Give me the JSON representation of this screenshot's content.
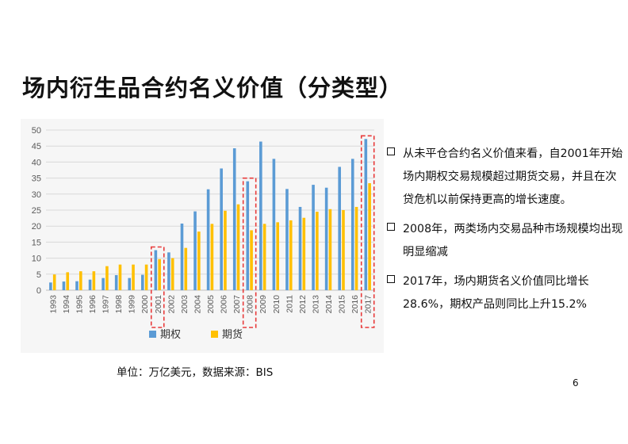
{
  "slide": {
    "title": "场内衍生品合约名义价值（分类型）",
    "caption": "单位：万亿美元，数据来源：BIS",
    "page_number": "6",
    "bullets": [
      "从未平仓合约名义价值来看，自2001年开始场内期权交易规模超过期货交易，并且在次贷危机以前保持更高的增长速度。",
      "2008年，两类场内交易品种市场规模均出现明显缩减",
      "2017年，场内期货名义价值同比增长28.6%，期权产品则同比上升15.2%"
    ]
  },
  "chart_data": {
    "type": "bar",
    "categories": [
      "1993",
      "1994",
      "1995",
      "1996",
      "1997",
      "1998",
      "1999",
      "2000",
      "2001",
      "2002",
      "2003",
      "2004",
      "2005",
      "2006",
      "2007",
      "2008",
      "2009",
      "2010",
      "2011",
      "2012",
      "2013",
      "2014",
      "2015",
      "2016",
      "2017"
    ],
    "series": [
      {
        "name": "期权",
        "color": "#5b9bd5",
        "values": [
          2.4,
          2.7,
          2.8,
          3.3,
          3.8,
          4.7,
          3.8,
          4.8,
          12.5,
          11.8,
          20.8,
          24.6,
          31.5,
          38.0,
          44.3,
          34.0,
          46.4,
          41.0,
          31.6,
          26.0,
          32.9,
          32.0,
          38.5,
          41.0,
          47.2
        ]
      },
      {
        "name": "期货",
        "color": "#ffc000",
        "values": [
          4.9,
          5.6,
          5.9,
          5.9,
          7.5,
          8.0,
          8.0,
          8.0,
          9.7,
          10.0,
          13.2,
          18.3,
          20.7,
          24.8,
          26.8,
          18.7,
          20.7,
          21.2,
          21.8,
          22.6,
          24.5,
          25.3,
          25.0,
          26.0,
          33.4
        ]
      }
    ],
    "ylim": [
      0,
      50
    ],
    "yticks": [
      0,
      5,
      10,
      15,
      20,
      25,
      30,
      35,
      40,
      45,
      50
    ],
    "grid": true,
    "legend_position": "bottom",
    "highlighted_categories": [
      "2001",
      "2008",
      "2017"
    ],
    "highlight_color": "#e83a3a"
  }
}
